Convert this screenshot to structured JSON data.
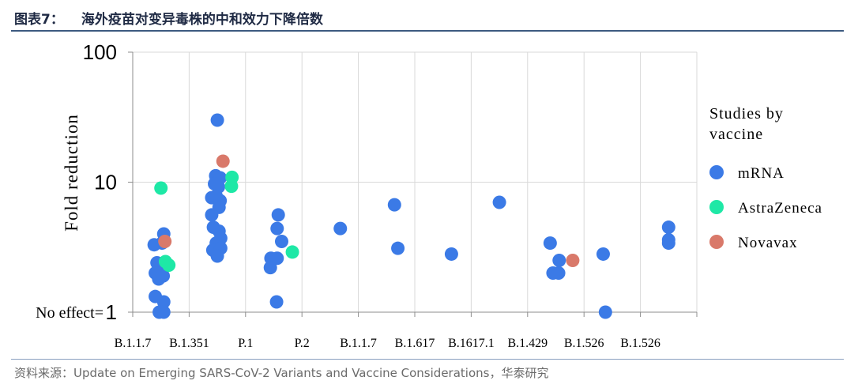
{
  "header": {
    "figure_label": "图表7：",
    "title": "海外疫苗对变异毒株的中和效力下降倍数"
  },
  "source": "资料来源：Update on Emerging SARS-CoV-2 Variants and Vaccine Considerations，华泰研究",
  "colors": {
    "mRNA": "#3b7ae6",
    "AstraZeneca": "#1ee8a6",
    "Novavax": "#d9796a",
    "grid": "#d9d9d9"
  },
  "chart_data": {
    "type": "scatter",
    "ylabel": "Fold reduction",
    "yscale": "log",
    "ylim": [
      1,
      100
    ],
    "yticks": [
      "1",
      "10",
      "100"
    ],
    "no_effect_label": "No effect=",
    "categories": [
      "B.1.1.7",
      "B.1.351",
      "P.1",
      "P.2",
      "B.1.1.7",
      "B.1.617",
      "B.1617.1",
      "B.1.429",
      "B.1.526",
      "B.1.526"
    ],
    "grid": true,
    "legend": {
      "title_line1": "Studies by",
      "title_line2": "vaccine",
      "position": "right",
      "entries": [
        "mRNA",
        "AstraZeneca",
        "Novavax"
      ]
    },
    "series": [
      {
        "name": "mRNA",
        "points": [
          {
            "category": 0,
            "jitter": -0.12,
            "y": 3.3
          },
          {
            "category": 0,
            "jitter": 0.05,
            "y": 4.0
          },
          {
            "category": 0,
            "jitter": 0.02,
            "y": 3.4
          },
          {
            "category": 0,
            "jitter": -0.07,
            "y": 2.4
          },
          {
            "category": 0,
            "jitter": -0.1,
            "y": 2.0
          },
          {
            "category": 0,
            "jitter": -0.02,
            "y": 2.0
          },
          {
            "category": 0,
            "jitter": -0.04,
            "y": 1.8
          },
          {
            "category": 0,
            "jitter": 0.04,
            "y": 1.9
          },
          {
            "category": 0,
            "jitter": -0.1,
            "y": 1.32
          },
          {
            "category": 0,
            "jitter": 0.05,
            "y": 1.2
          },
          {
            "category": 0,
            "jitter": -0.03,
            "y": 1.0
          },
          {
            "category": 0,
            "jitter": 0.05,
            "y": 1.0
          },
          {
            "category": 1,
            "jitter": 0.0,
            "y": 30
          },
          {
            "category": 1,
            "jitter": -0.03,
            "y": 11.2
          },
          {
            "category": 1,
            "jitter": 0.05,
            "y": 10.8
          },
          {
            "category": 1,
            "jitter": -0.05,
            "y": 9.7
          },
          {
            "category": 1,
            "jitter": 0.02,
            "y": 9.2
          },
          {
            "category": 1,
            "jitter": -0.1,
            "y": 7.6
          },
          {
            "category": 1,
            "jitter": -0.02,
            "y": 7.8
          },
          {
            "category": 1,
            "jitter": 0.05,
            "y": 7.2
          },
          {
            "category": 1,
            "jitter": 0.03,
            "y": 6.4
          },
          {
            "category": 1,
            "jitter": -0.1,
            "y": 5.6
          },
          {
            "category": 1,
            "jitter": -0.07,
            "y": 4.5
          },
          {
            "category": 1,
            "jitter": 0.03,
            "y": 4.2
          },
          {
            "category": 1,
            "jitter": 0.06,
            "y": 3.7
          },
          {
            "category": 1,
            "jitter": -0.02,
            "y": 3.4
          },
          {
            "category": 1,
            "jitter": -0.08,
            "y": 3.0
          },
          {
            "category": 1,
            "jitter": 0.06,
            "y": 3.1
          },
          {
            "category": 1,
            "jitter": 0.0,
            "y": 2.7
          },
          {
            "category": 2,
            "jitter": 0.08,
            "y": 5.6
          },
          {
            "category": 2,
            "jitter": 0.06,
            "y": 4.4
          },
          {
            "category": 2,
            "jitter": 0.14,
            "y": 3.5
          },
          {
            "category": 2,
            "jitter": -0.05,
            "y": 2.6
          },
          {
            "category": 2,
            "jitter": 0.06,
            "y": 2.6
          },
          {
            "category": 2,
            "jitter": -0.06,
            "y": 2.2
          },
          {
            "category": 2,
            "jitter": 0.05,
            "y": 1.2
          },
          {
            "category": 3,
            "jitter": 0.18,
            "y": 4.4
          },
          {
            "category": 4,
            "jitter": 0.14,
            "y": 6.7
          },
          {
            "category": 4,
            "jitter": 0.2,
            "y": 3.1
          },
          {
            "category": 5,
            "jitter": 0.15,
            "y": 2.8
          },
          {
            "category": 6,
            "jitter": 0.0,
            "y": 7.0
          },
          {
            "category": 7,
            "jitter": -0.1,
            "y": 3.4
          },
          {
            "category": 7,
            "jitter": 0.06,
            "y": 2.5
          },
          {
            "category": 7,
            "jitter": -0.05,
            "y": 2.0
          },
          {
            "category": 7,
            "jitter": 0.05,
            "y": 2.0
          },
          {
            "category": 8,
            "jitter": -0.16,
            "y": 2.8
          },
          {
            "category": 8,
            "jitter": -0.12,
            "y": 1.0
          },
          {
            "category": 9,
            "jitter": 0.0,
            "y": 4.5
          },
          {
            "category": 9,
            "jitter": 0.0,
            "y": 3.6
          },
          {
            "category": 9,
            "jitter": 0.0,
            "y": 3.4
          }
        ]
      },
      {
        "name": "AstraZeneca",
        "points": [
          {
            "category": 0,
            "jitter": 0.0,
            "y": 9.0
          },
          {
            "category": 0,
            "jitter": 0.08,
            "y": 2.45
          },
          {
            "category": 0,
            "jitter": 0.14,
            "y": 2.3
          },
          {
            "category": 1,
            "jitter": 0.26,
            "y": 10.9
          },
          {
            "category": 1,
            "jitter": 0.25,
            "y": 9.3
          },
          {
            "category": 2,
            "jitter": 0.33,
            "y": 2.9
          }
        ]
      },
      {
        "name": "Novavax",
        "points": [
          {
            "category": 1,
            "jitter": 0.1,
            "y": 14.5
          },
          {
            "category": 0,
            "jitter": 0.07,
            "y": 3.5
          },
          {
            "category": 7,
            "jitter": 0.3,
            "y": 2.5
          }
        ]
      }
    ]
  }
}
